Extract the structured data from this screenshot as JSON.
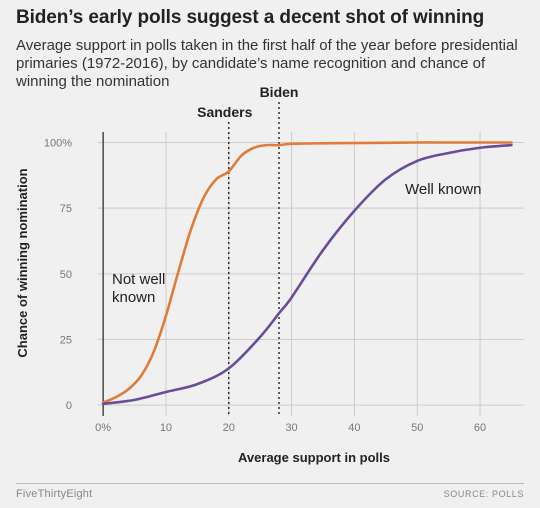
{
  "header": {
    "title": "Biden’s early polls suggest a decent shot of winning",
    "subtitle": "Average support in polls taken in the first half of the year before presidential primaries (1972-2016), by candidate’s name recognition and chance of winning the nomination"
  },
  "footer": {
    "brand": "FiveThirtyEight",
    "source": "SOURCE: POLLS"
  },
  "chart_data": {
    "type": "line",
    "xlabel": "Average support in polls",
    "ylabel": "Chance of winning nomination",
    "xlim": [
      -4,
      67
    ],
    "ylim": [
      -3,
      104
    ],
    "x_ticks": [
      0,
      10,
      20,
      30,
      40,
      50,
      60
    ],
    "x_tick_labels": [
      "0%",
      "10",
      "20",
      "30",
      "40",
      "50",
      "60"
    ],
    "y_ticks": [
      0,
      25,
      50,
      75,
      100
    ],
    "y_tick_labels": [
      "0",
      "25",
      "50",
      "75",
      "100%"
    ],
    "grid": true,
    "series": [
      {
        "name": "Not well known",
        "color": "#e07b39",
        "x": [
          0,
          2,
          4,
          6,
          8,
          10,
          12,
          14,
          16,
          18,
          20,
          22,
          24,
          26,
          28,
          30,
          35,
          40,
          45,
          50,
          55,
          60,
          65
        ],
        "y": [
          1,
          3,
          6,
          11,
          20,
          34,
          51,
          67,
          79,
          86,
          89,
          95,
          98,
          99,
          99,
          99.5,
          99.7,
          99.8,
          99.9,
          100,
          100,
          100,
          100
        ]
      },
      {
        "name": "Well known",
        "color": "#6b4c9a",
        "x": [
          0,
          5,
          10,
          15,
          20,
          25,
          28,
          30,
          35,
          40,
          45,
          50,
          55,
          60,
          65
        ],
        "y": [
          0.5,
          2,
          5,
          8,
          14,
          26,
          35,
          41,
          59,
          74,
          86,
          93,
          96,
          98,
          99
        ]
      }
    ],
    "annotations": [
      {
        "label": "Sanders",
        "x": 20
      },
      {
        "label": "Biden",
        "x": 28
      }
    ],
    "axis_line_x": 0
  }
}
